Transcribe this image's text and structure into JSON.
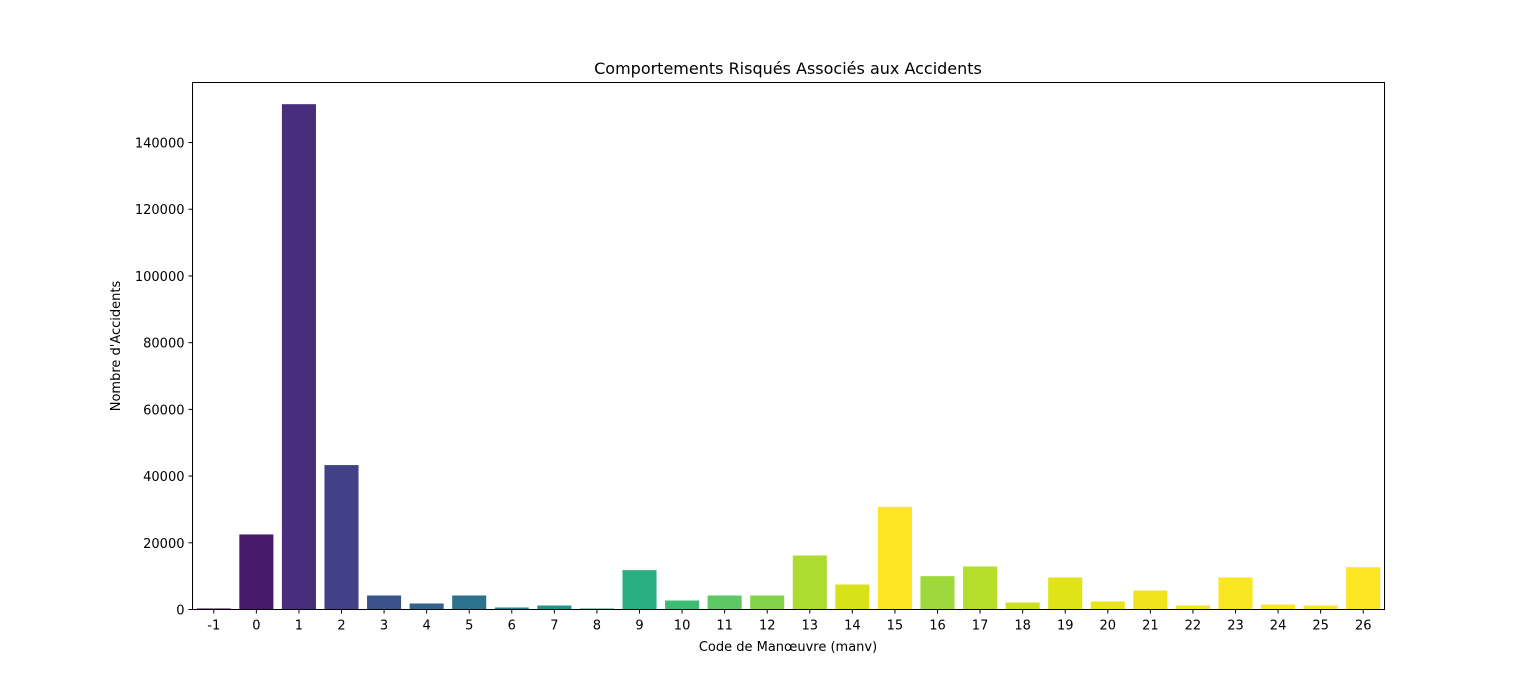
{
  "chart_data": {
    "type": "bar",
    "title": "Comportements Risqués Associés aux Accidents",
    "xlabel": "Code de Manœuvre (manv)",
    "ylabel": "Nombre d'Accidents",
    "categories": [
      "-1",
      "0",
      "1",
      "2",
      "3",
      "4",
      "5",
      "6",
      "7",
      "8",
      "9",
      "10",
      "11",
      "12",
      "13",
      "14",
      "15",
      "16",
      "17",
      "18",
      "19",
      "20",
      "21",
      "22",
      "23",
      "24",
      "25",
      "26"
    ],
    "values": [
      300,
      22500,
      151500,
      43300,
      4200,
      1800,
      4200,
      600,
      1200,
      300,
      11800,
      2700,
      4200,
      4200,
      16200,
      7500,
      30800,
      10000,
      12900,
      2100,
      9600,
      2400,
      5700,
      1200,
      9600,
      1500,
      1200,
      12700
    ],
    "colors": [
      "#440154",
      "#48186a",
      "#472d7b",
      "#424086",
      "#3b528b",
      "#33638d",
      "#2c728e",
      "#26828e",
      "#21918c",
      "#1fa088",
      "#28ae80",
      "#3fbc73",
      "#5ec962",
      "#84d44b",
      "#addc30",
      "#d8e219",
      "#fde725",
      "#9dd93b",
      "#b5de2b",
      "#cae11f",
      "#dfe318",
      "#eae51a",
      "#f0e51c",
      "#f4e61e",
      "#f7e620",
      "#fae723",
      "#fce724",
      "#fde725"
    ],
    "ylim": [
      0,
      158000
    ],
    "yticks": [
      0,
      20000,
      40000,
      60000,
      80000,
      100000,
      120000,
      140000
    ],
    "grid": false
  }
}
